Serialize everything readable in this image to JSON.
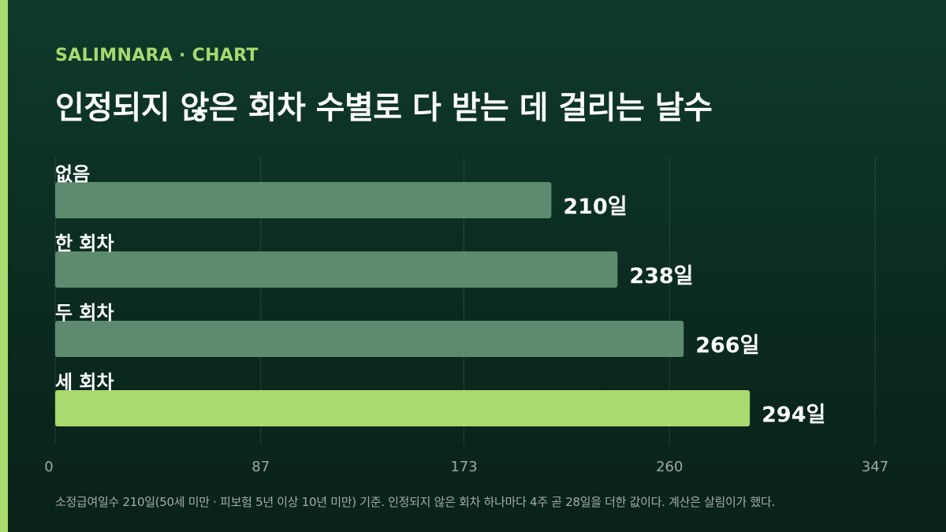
{
  "brand": "SALIMNARA · CHART",
  "chart_data": {
    "type": "bar",
    "orientation": "horizontal",
    "title": "인정되지 않은 회차 수별로 다 받는 데 걸리는 날수",
    "categories": [
      "없음",
      "한 회차",
      "두 회차",
      "세 회차"
    ],
    "values": [
      210,
      238,
      266,
      294
    ],
    "value_labels": [
      "210일",
      "238일",
      "266일",
      "294일"
    ],
    "highlight_index": 3,
    "xlim": [
      0,
      347
    ],
    "xticks": [
      0,
      87,
      173,
      260,
      347
    ],
    "grid": true,
    "colors": {
      "bar": "#5e8b6f",
      "highlight": "#a9d96f",
      "accent": "#a9d96f"
    }
  },
  "footnote": "소정급여일수 210일(50세 미만 · 피보험 5년 이상 10년 미만) 기준. 인정되지 않은 회차 하나마다 4주 곧 28일을 더한 값이다. 계산은 살림이가 했다."
}
